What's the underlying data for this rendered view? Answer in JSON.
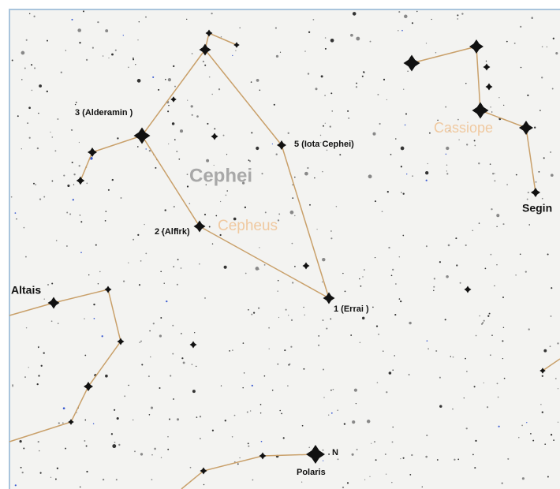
{
  "labels": {
    "alderamin": "3 (Alderamin )",
    "iota": "5 (Iota Cephei)",
    "cephei": "Cephei",
    "cepheus": "Cepheus",
    "alfirk": "2 (Alfirk)",
    "errai": "1 (Errai )",
    "altais": "Altais",
    "cassiopeia": "Cassiope",
    "segin": "Segin",
    "north": "N",
    "polaris": "Polaris"
  }
}
